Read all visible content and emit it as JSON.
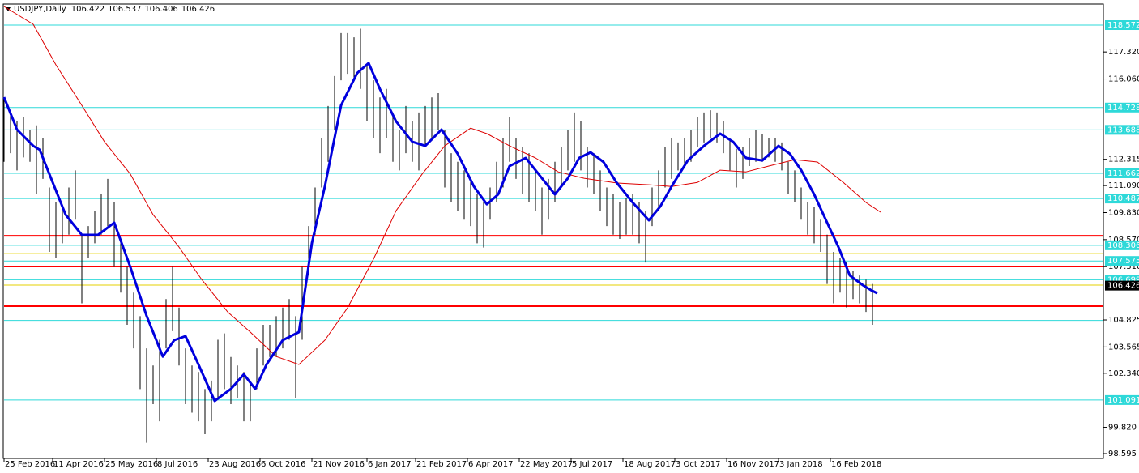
{
  "chart_data": {
    "type": "ohlc",
    "title": "USDJPY,Daily",
    "quote": [
      106.422,
      106.537,
      106.406,
      106.426
    ],
    "bar_color": "#000000",
    "xlim": [
      0,
      678.5
    ],
    "ylim": [
      98.368,
      119.554
    ],
    "x": [
      0,
      4,
      8,
      12,
      16,
      20,
      24,
      28,
      32,
      36,
      40,
      44,
      48,
      52,
      56,
      60,
      64,
      68,
      72,
      76,
      80,
      84,
      88,
      92,
      96,
      100,
      104,
      108,
      112,
      116,
      120,
      124,
      128,
      132,
      136,
      140,
      144,
      148,
      152,
      156,
      160,
      164,
      168,
      172,
      176,
      180,
      184,
      188,
      192,
      196,
      200,
      204,
      208,
      212,
      216,
      220,
      224,
      228,
      232,
      236,
      240,
      244,
      248,
      252,
      256,
      260,
      264,
      268,
      272,
      276,
      280,
      284,
      288,
      292,
      296,
      300,
      304,
      308,
      312,
      316,
      320,
      324,
      328,
      332,
      336,
      340,
      344,
      348,
      352,
      356,
      360,
      364,
      368,
      372,
      376,
      380,
      384,
      388,
      392,
      396,
      400,
      404,
      408,
      412,
      416,
      420,
      424,
      428,
      432,
      436,
      440,
      444,
      448,
      452,
      456,
      460,
      464,
      468,
      472,
      476,
      480,
      484,
      488,
      492,
      496,
      500,
      504,
      508,
      512,
      516,
      520,
      524,
      528,
      532,
      536
    ],
    "high": [
      115.2,
      114.5,
      114.1,
      114.3,
      113.7,
      113.9,
      113.3,
      111.0,
      110.3,
      109.9,
      111.0,
      111.8,
      108.8,
      109.2,
      109.9,
      110.7,
      111.4,
      110.3,
      108.4,
      107.3,
      106.1,
      105.0,
      103.5,
      102.7,
      103.9,
      105.8,
      107.3,
      105.4,
      103.5,
      102.7,
      102.4,
      101.6,
      102.0,
      103.9,
      104.2,
      103.1,
      102.7,
      102.4,
      102.0,
      103.5,
      104.6,
      104.6,
      105.0,
      105.4,
      105.8,
      105.0,
      107.3,
      109.2,
      111.0,
      113.3,
      114.8,
      116.2,
      118.2,
      118.2,
      118.0,
      118.4,
      116.7,
      116.0,
      115.2,
      115.6,
      114.5,
      113.7,
      114.8,
      114.1,
      114.5,
      114.8,
      115.2,
      115.4,
      113.7,
      112.6,
      112.2,
      111.8,
      111.4,
      110.7,
      110.3,
      111.0,
      112.2,
      113.3,
      114.3,
      113.3,
      112.9,
      112.6,
      111.8,
      111.0,
      111.4,
      112.2,
      112.9,
      113.7,
      114.5,
      114.1,
      112.9,
      112.6,
      111.8,
      111.0,
      110.7,
      110.3,
      110.5,
      110.7,
      110.3,
      109.9,
      111.0,
      111.8,
      112.9,
      113.3,
      113.1,
      113.3,
      113.7,
      114.3,
      114.5,
      114.6,
      114.5,
      114.1,
      113.3,
      112.8,
      112.9,
      113.3,
      113.7,
      113.5,
      113.3,
      113.3,
      113.1,
      112.2,
      111.8,
      111.0,
      110.3,
      110.1,
      109.5,
      108.8,
      108.0,
      107.7,
      107.5,
      107.1,
      106.9,
      106.7,
      106.5
    ],
    "low": [
      112.2,
      112.6,
      111.8,
      112.4,
      112.2,
      110.7,
      111.4,
      108.0,
      107.7,
      108.4,
      108.8,
      109.5,
      105.6,
      107.7,
      108.4,
      108.8,
      109.2,
      107.3,
      106.1,
      104.6,
      103.5,
      101.6,
      99.1,
      100.9,
      100.1,
      103.5,
      104.3,
      102.7,
      100.9,
      100.5,
      100.1,
      99.5,
      100.1,
      101.2,
      101.6,
      100.9,
      101.2,
      100.1,
      100.1,
      101.6,
      102.7,
      103.1,
      103.1,
      103.5,
      103.9,
      101.2,
      103.9,
      106.9,
      108.8,
      111.0,
      112.2,
      113.7,
      116.0,
      116.3,
      116.0,
      115.6,
      114.1,
      113.3,
      112.6,
      113.3,
      112.2,
      111.8,
      112.6,
      112.2,
      111.8,
      112.9,
      113.3,
      113.7,
      111.0,
      110.3,
      109.9,
      109.5,
      109.2,
      108.4,
      108.2,
      109.5,
      110.3,
      111.0,
      112.2,
      111.4,
      110.7,
      110.3,
      109.9,
      108.8,
      109.5,
      110.3,
      111.0,
      111.8,
      112.2,
      111.8,
      111.0,
      110.7,
      109.9,
      109.2,
      108.8,
      108.6,
      108.8,
      108.8,
      108.4,
      107.5,
      109.2,
      109.9,
      111.0,
      111.4,
      111.8,
      112.0,
      112.2,
      112.9,
      113.1,
      113.3,
      113.1,
      112.6,
      111.8,
      111.0,
      111.4,
      112.0,
      112.2,
      112.2,
      112.4,
      112.2,
      111.8,
      110.7,
      110.3,
      109.5,
      108.8,
      108.4,
      108.0,
      106.5,
      105.6,
      106.1,
      105.4,
      105.8,
      105.6,
      105.2,
      104.6
    ],
    "ma_fast": {
      "color": "#0000dd",
      "x": [
        0,
        8,
        18,
        22,
        28,
        38,
        48,
        58,
        68,
        78,
        88,
        98,
        105,
        112,
        120,
        130,
        140,
        148,
        155,
        162,
        172,
        182,
        190,
        198,
        208,
        218,
        225,
        232,
        242,
        252,
        260,
        270,
        280,
        290,
        298,
        305,
        312,
        322,
        332,
        340,
        348,
        355,
        362,
        370,
        378,
        388,
        398,
        405,
        412,
        422,
        432,
        442,
        450,
        458,
        468,
        478,
        485,
        492,
        500,
        508,
        515,
        522,
        530,
        535,
        539
      ],
      "values": [
        115.21,
        113.7,
        112.94,
        112.76,
        111.62,
        109.73,
        108.79,
        108.79,
        109.36,
        107.28,
        105.01,
        103.12,
        103.88,
        104.07,
        102.75,
        101.05,
        101.61,
        102.29,
        101.61,
        102.75,
        103.88,
        104.26,
        108.41,
        111.05,
        114.83,
        116.34,
        116.8,
        115.59,
        114.08,
        113.13,
        112.94,
        113.7,
        112.57,
        111.05,
        110.22,
        110.68,
        112.0,
        112.38,
        111.43,
        110.68,
        111.43,
        112.38,
        112.64,
        112.19,
        111.24,
        110.3,
        109.47,
        110.11,
        111.05,
        112.26,
        112.94,
        113.51,
        113.13,
        112.38,
        112.26,
        112.94,
        112.57,
        111.81,
        110.68,
        109.36,
        108.22,
        106.9,
        106.45,
        106.22,
        106.07
      ]
    },
    "ma_slow": {
      "color": "#dd0000",
      "x": [
        0,
        18,
        32,
        48,
        62,
        78,
        92,
        108,
        122,
        138,
        152,
        168,
        182,
        198,
        212,
        228,
        242,
        258,
        272,
        288,
        298,
        312,
        328,
        342,
        358,
        378,
        398,
        412,
        428,
        442,
        458,
        472,
        488,
        502,
        518,
        532,
        541
      ],
      "values": [
        119.44,
        118.61,
        116.72,
        114.83,
        113.13,
        111.62,
        109.73,
        108.22,
        106.71,
        105.2,
        104.26,
        103.12,
        102.75,
        103.88,
        105.39,
        107.66,
        109.92,
        111.62,
        112.94,
        113.77,
        113.51,
        112.94,
        112.38,
        111.73,
        111.43,
        111.21,
        111.13,
        111.05,
        111.24,
        111.81,
        111.73,
        112.0,
        112.3,
        112.19,
        111.24,
        110.3,
        109.85
      ]
    },
    "price_levels": {
      "color": "#2ed9d9",
      "values": [
        118.572,
        114.728,
        113.688,
        111.662,
        110.487,
        108.306,
        107.575,
        106.699,
        101.091
      ]
    },
    "lines": [
      {
        "value": 108.75,
        "color": "#ff0000"
      },
      {
        "value": 107.32,
        "color": "#ff0000"
      },
      {
        "value": 105.47,
        "color": "#ff0000"
      },
      {
        "value": 107.92,
        "color": "#e6d200"
      },
      {
        "value": 106.45,
        "color": "#e6d200"
      },
      {
        "value": 104.8,
        "color": "#2ed9d9"
      }
    ],
    "yticks": [
      {
        "value": 117.32,
        "label": "117.320"
      },
      {
        "value": 116.06,
        "label": "116.060"
      },
      112.315,
      {
        "value": 111.09,
        "label": "111.090"
      },
      {
        "value": 109.83,
        "label": "109.830"
      },
      {
        "value": 108.57,
        "label": "108.570"
      },
      {
        "value": 107.31,
        "label": "107.310"
      },
      104.825,
      103.565,
      {
        "value": 102.34,
        "label": "102.340"
      },
      {
        "value": 99.82,
        "label": "99.820"
      },
      98.595
    ],
    "xticks": [
      {
        "value": 0,
        "label": "25 Feb 2016"
      },
      {
        "value": 30,
        "label": "11 Apr 2016"
      },
      {
        "value": 62,
        "label": "25 May 2016"
      },
      {
        "value": 94,
        "label": "8 Jul 2016"
      },
      {
        "value": 126,
        "label": "23 Aug 2016"
      },
      {
        "value": 158,
        "label": "6 Oct 2016"
      },
      {
        "value": 190,
        "label": "21 Nov 2016"
      },
      {
        "value": 224,
        "label": "6 Jan 2017"
      },
      {
        "value": 254,
        "label": "21 Feb 2017"
      },
      {
        "value": 286,
        "label": "6 Apr 2017"
      },
      {
        "value": 318,
        "label": "22 May 2017"
      },
      {
        "value": 350,
        "label": "5 Jul 2017"
      },
      {
        "value": 382,
        "label": "18 Aug 2017"
      },
      {
        "value": 414,
        "label": "3 Oct 2017"
      },
      {
        "value": 446,
        "label": "16 Nov 2017"
      },
      {
        "value": 478,
        "label": "3 Jan 2018"
      },
      {
        "value": 510,
        "label": "16 Feb 2018"
      }
    ]
  }
}
